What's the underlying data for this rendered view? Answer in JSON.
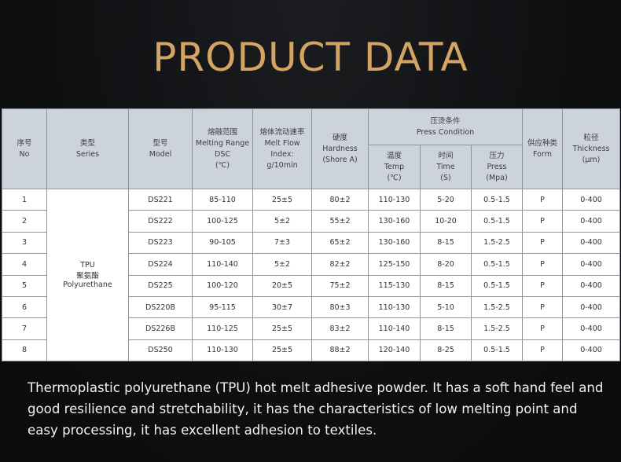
{
  "title": "PRODUCT DATA",
  "headers": {
    "no": [
      "序号",
      "No"
    ],
    "series": [
      "类型",
      "Series"
    ],
    "model": [
      "型号",
      "Model"
    ],
    "melting": [
      "熔融范围",
      "Melting Range",
      "DSC",
      "(℃)"
    ],
    "mfi": [
      "熔体流动速率",
      "Melt Flow",
      "Index:",
      "g/10min"
    ],
    "hardness": [
      "硬度",
      "Hardness",
      "(Shore A)"
    ],
    "press": [
      "压烫条件",
      "Press Condition"
    ],
    "temp": [
      "温度",
      "Temp",
      "(℃)"
    ],
    "time": [
      "时间",
      "Time",
      "(S)"
    ],
    "pressure": [
      "压力",
      "Press",
      "(Mpa)"
    ],
    "form": [
      "供应种类",
      "Form"
    ],
    "thickness": [
      "粒径",
      "Thickness",
      "(μm)"
    ]
  },
  "series_label": [
    "TPU",
    "聚氨酯",
    "Polyurethane"
  ],
  "rows": [
    {
      "no": "1",
      "model": "DS221",
      "melting": "85-110",
      "mfi": "25±5",
      "hardness": "80±2",
      "temp": "110-130",
      "time": "5-20",
      "pressure": "0.5-1.5",
      "form": "P",
      "thickness": "0-400"
    },
    {
      "no": "2",
      "model": "DS222",
      "melting": "100-125",
      "mfi": "5±2",
      "hardness": "55±2",
      "temp": "130-160",
      "time": "10-20",
      "pressure": "0.5-1.5",
      "form": "P",
      "thickness": "0-400"
    },
    {
      "no": "3",
      "model": "DS223",
      "melting": "90-105",
      "mfi": "7±3",
      "hardness": "65±2",
      "temp": "130-160",
      "time": "8-15",
      "pressure": "1.5-2.5",
      "form": "P",
      "thickness": "0-400"
    },
    {
      "no": "4",
      "model": "DS224",
      "melting": "110-140",
      "mfi": "5±2",
      "hardness": "82±2",
      "temp": "125-150",
      "time": "8-20",
      "pressure": "0.5-1.5",
      "form": "P",
      "thickness": "0-400"
    },
    {
      "no": "5",
      "model": "DS225",
      "melting": "100-120",
      "mfi": "20±5",
      "hardness": "75±2",
      "temp": "115-130",
      "time": "8-15",
      "pressure": "0.5-1.5",
      "form": "P",
      "thickness": "0-400"
    },
    {
      "no": "6",
      "model": "DS220B",
      "melting": "95-115",
      "mfi": "30±7",
      "hardness": "80±3",
      "temp": "110-130",
      "time": "5-10",
      "pressure": "1.5-2.5",
      "form": "P",
      "thickness": "0-400"
    },
    {
      "no": "7",
      "model": "DS226B",
      "melting": "110-125",
      "mfi": "25±5",
      "hardness": "83±2",
      "temp": "110-140",
      "time": "8-15",
      "pressure": "1.5-2.5",
      "form": "P",
      "thickness": "0-400"
    },
    {
      "no": "8",
      "model": "DS250",
      "melting": "110-130",
      "mfi": "25±5",
      "hardness": "88±2",
      "temp": "120-140",
      "time": "8-25",
      "pressure": "0.5-1.5",
      "form": "P",
      "thickness": "0-400"
    }
  ],
  "description": "Thermoplastic polyurethane (TPU) hot melt adhesive powder. It has a soft hand feel and good resilience and stretchability, it has the characteristics of low melting point and easy processing, it has excellent adhesion to textiles."
}
